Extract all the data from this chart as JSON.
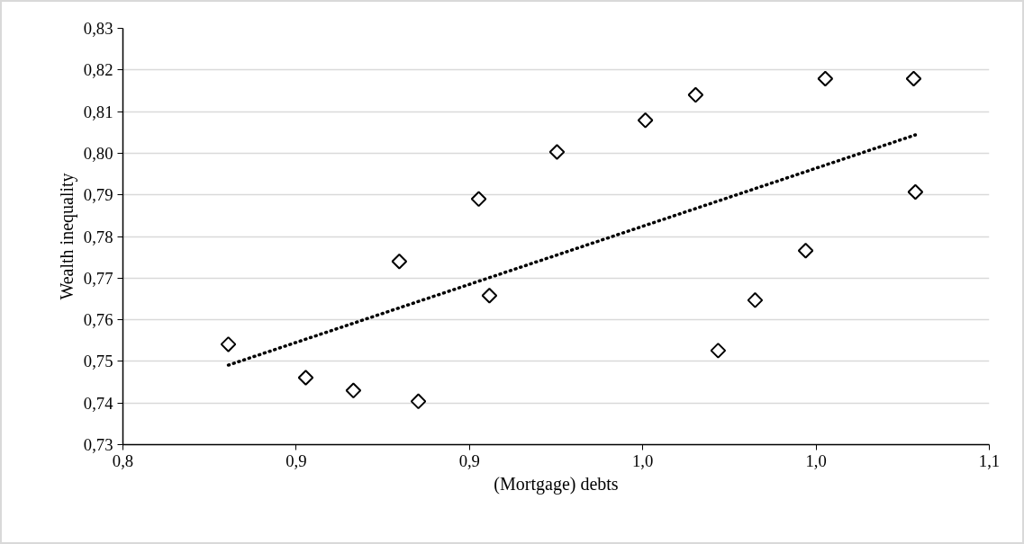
{
  "chart_data": {
    "type": "scatter",
    "xlabel": "(Mortgage) debts",
    "ylabel": "Wealth inequality",
    "xlim": [
      0.8,
      1.1
    ],
    "xticks": [
      {
        "value": 0.8,
        "label": "0,8"
      },
      {
        "value": 0.86,
        "label": "0,9"
      },
      {
        "value": 0.92,
        "label": "0,9"
      },
      {
        "value": 0.98,
        "label": "1,0"
      },
      {
        "value": 1.04,
        "label": "1,0"
      },
      {
        "value": 1.1,
        "label": "1,1"
      }
    ],
    "ylim": [
      0.73,
      0.83
    ],
    "yticks": [
      {
        "value": 0.73,
        "label": "0,73"
      },
      {
        "value": 0.74,
        "label": "0,74"
      },
      {
        "value": 0.75,
        "label": "0,75"
      },
      {
        "value": 0.76,
        "label": "0,76"
      },
      {
        "value": 0.77,
        "label": "0,77"
      },
      {
        "value": 0.78,
        "label": "0,78"
      },
      {
        "value": 0.79,
        "label": "0,79"
      },
      {
        "value": 0.8,
        "label": "0,80"
      },
      {
        "value": 0.81,
        "label": "0,81"
      },
      {
        "value": 0.82,
        "label": "0,82"
      },
      {
        "value": 0.83,
        "label": "0,83"
      }
    ],
    "grid": "y",
    "series": [
      {
        "marker": "diamond",
        "color": "#000000",
        "x": [
          0.8365,
          0.8633,
          0.8798,
          0.9023,
          0.8957,
          0.9232,
          0.9269,
          0.9503,
          0.9809,
          0.9983,
          1.0061,
          1.0189,
          1.0364,
          1.0432,
          1.0738,
          1.0744
        ],
        "values": [
          0.7541,
          0.7461,
          0.743,
          0.7404,
          0.774,
          0.789,
          0.7658,
          0.8003,
          0.8079,
          0.814,
          0.7526,
          0.7647,
          0.7766,
          0.8179,
          0.8179,
          0.7907
        ]
      },
      {
        "type": "line",
        "line_style": "dotted",
        "color": "#000000",
        "x": [
          0.8365,
          1.0744
        ],
        "values": [
          0.7491,
          0.8044
        ]
      }
    ]
  }
}
